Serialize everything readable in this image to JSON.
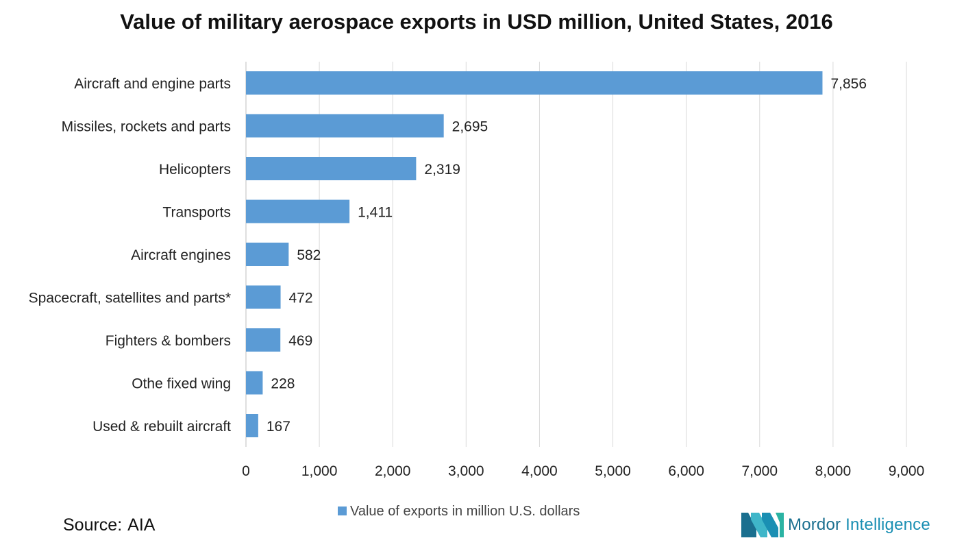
{
  "title": "Value of military aerospace exports in USD million, United States, 2016",
  "source": {
    "label": "Source:",
    "value": "AIA"
  },
  "logo": {
    "word1": "Mordor",
    "word2": "Intelligence"
  },
  "colors": {
    "bar": "#5b9bd5",
    "grid": "#d9d9d9",
    "axis": "#bfbfbf"
  },
  "chart_data": {
    "type": "bar",
    "orientation": "horizontal",
    "title": "Value of military aerospace exports in USD million, United States, 2016",
    "categories": [
      "Aircraft and engine parts",
      "Missiles, rockets and parts",
      "Helicopters",
      "Transports",
      "Aircraft engines",
      "Spacecraft, satellites and parts*",
      "Fighters & bombers",
      "Othe fixed wing",
      "Used & rebuilt aircraft"
    ],
    "series": [
      {
        "name": "Value of exports in million U.S. dollars",
        "values": [
          7856,
          2695,
          2319,
          1411,
          582,
          472,
          469,
          228,
          167
        ],
        "labels": [
          "7,856",
          "2,695",
          "2,319",
          "1,411",
          "582",
          "472",
          "469",
          "228",
          "167"
        ]
      }
    ],
    "xlim": [
      0,
      9000
    ],
    "xticks": [
      0,
      1000,
      2000,
      3000,
      4000,
      5000,
      6000,
      7000,
      8000,
      9000
    ],
    "xtick_labels": [
      "0",
      "1,000",
      "2,000",
      "3,000",
      "4,000",
      "5,000",
      "6,000",
      "7,000",
      "8,000",
      "9,000"
    ],
    "grid": true,
    "legend": "bottom-center"
  }
}
